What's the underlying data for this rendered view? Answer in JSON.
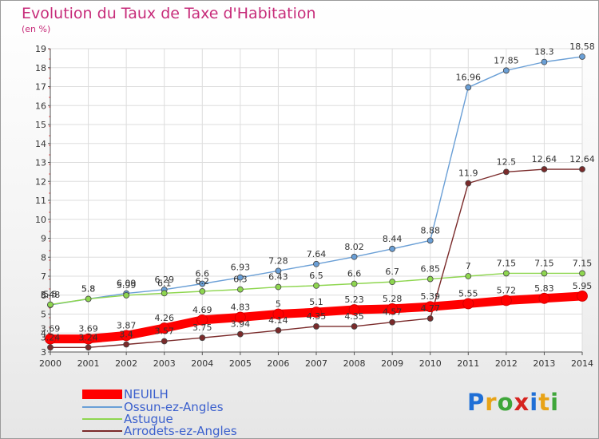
{
  "title": "Evolution du Taux de Taxe d'Habitation",
  "subtitle": "(en %)",
  "brand": {
    "letters": [
      "P",
      "r",
      "o",
      "x",
      "i",
      "t",
      "i"
    ],
    "colors": [
      "#1f6fd6",
      "#e8a317",
      "#3fa63a",
      "#d6231f",
      "#1f6fd6",
      "#e8a317",
      "#3fa63a"
    ]
  },
  "chart_data": {
    "type": "line",
    "x": [
      2000,
      2001,
      2002,
      2003,
      2004,
      2005,
      2006,
      2007,
      2008,
      2009,
      2010,
      2011,
      2012,
      2013,
      2014
    ],
    "ylim": [
      3,
      19
    ],
    "yticks": [
      3,
      4,
      5,
      6,
      7,
      8,
      9,
      10,
      11,
      12,
      13,
      14,
      15,
      16,
      17,
      18,
      19
    ],
    "grid": true,
    "legend": "bottom-left",
    "series": [
      {
        "name": "NEUILH",
        "color": "#ff0000",
        "values": [
          3.69,
          3.69,
          3.87,
          4.26,
          4.69,
          4.83,
          5,
          5.1,
          5.23,
          5.28,
          5.39,
          5.55,
          5.72,
          5.83,
          5.95
        ]
      },
      {
        "name": "Ossun-ez-Angles",
        "color": "#6a9fd6",
        "values": [
          5.48,
          5.8,
          6.09,
          6.29,
          6.6,
          6.93,
          7.28,
          7.64,
          8.02,
          8.44,
          8.88,
          16.96,
          17.85,
          18.3,
          18.58
        ]
      },
      {
        "name": "Astugue",
        "color": "#8ed64f",
        "values": [
          5.5,
          5.8,
          5.99,
          6.1,
          6.2,
          6.3,
          6.43,
          6.5,
          6.6,
          6.7,
          6.85,
          7,
          7.15,
          7.15,
          7.15
        ]
      },
      {
        "name": "Arrodets-ez-Angles",
        "color": "#7a2a2a",
        "values": [
          3.24,
          3.24,
          3.4,
          3.57,
          3.75,
          3.94,
          4.14,
          4.35,
          4.35,
          4.57,
          4.77,
          11.9,
          12.5,
          12.64,
          12.64
        ]
      }
    ]
  }
}
